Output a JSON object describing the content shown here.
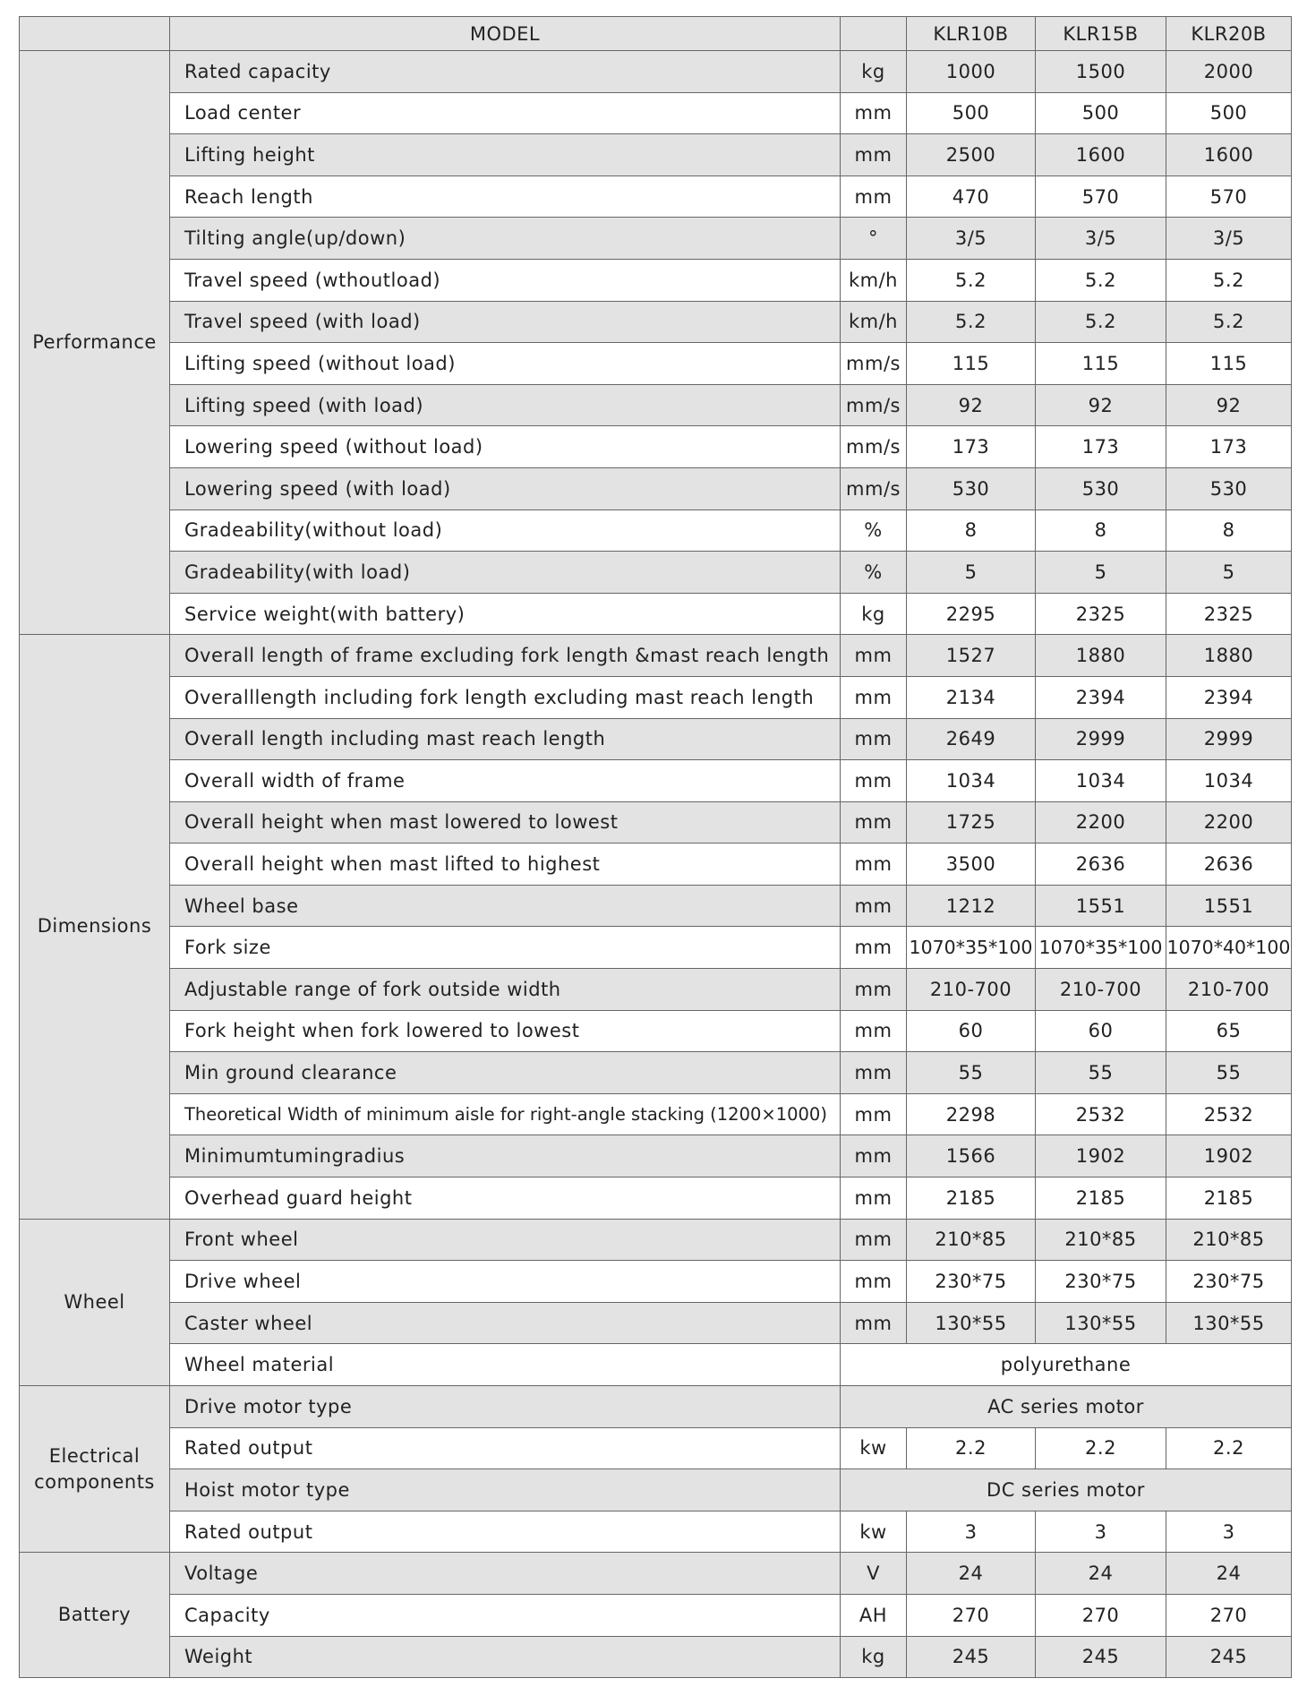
{
  "header": {
    "model_label": "MODEL",
    "models": [
      "KLR10B",
      "KLR15B",
      "KLR20B"
    ]
  },
  "groups": [
    {
      "name": "Performance",
      "rows": [
        {
          "label": "Rated capacity",
          "unit": "kg",
          "values": [
            "1000",
            "1500",
            "2000"
          ]
        },
        {
          "label": "Load center",
          "unit": "mm",
          "values": [
            "500",
            "500",
            "500"
          ]
        },
        {
          "label": "Lifting height",
          "unit": "mm",
          "values": [
            "2500",
            "1600",
            "1600"
          ]
        },
        {
          "label": "Reach length",
          "unit": "mm",
          "values": [
            "470",
            "570",
            "570"
          ]
        },
        {
          "label": "Tilting angle(up/down)",
          "unit": "°",
          "values": [
            "3/5",
            "3/5",
            "3/5"
          ]
        },
        {
          "label": "Travel speed (wthoutload)",
          "unit": "km/h",
          "values": [
            "5.2",
            "5.2",
            "5.2"
          ]
        },
        {
          "label": "Travel speed (with load)",
          "unit": "km/h",
          "values": [
            "5.2",
            "5.2",
            "5.2"
          ]
        },
        {
          "label": "Lifting speed (without load)",
          "unit": "mm/s",
          "values": [
            "115",
            "115",
            "115"
          ]
        },
        {
          "label": "Lifting speed (with load)",
          "unit": "mm/s",
          "values": [
            "92",
            "92",
            "92"
          ]
        },
        {
          "label": "Lowering speed (without load)",
          "unit": "mm/s",
          "values": [
            "173",
            "173",
            "173"
          ]
        },
        {
          "label": "Lowering speed (with load)",
          "unit": "mm/s",
          "values": [
            "530",
            "530",
            "530"
          ]
        },
        {
          "label": "Gradeability(without load)",
          "unit": "%",
          "values": [
            "8",
            "8",
            "8"
          ]
        },
        {
          "label": "Gradeability(with load)",
          "unit": "%",
          "values": [
            "5",
            "5",
            "5"
          ]
        },
        {
          "label": "Service weight(with battery)",
          "unit": "kg",
          "values": [
            "2295",
            "2325",
            "2325"
          ]
        }
      ]
    },
    {
      "name": "Dimensions",
      "rows": [
        {
          "label": "Overall length of frame excluding fork length &mast reach length",
          "unit": "mm",
          "values": [
            "1527",
            "1880",
            "1880"
          ]
        },
        {
          "label": "Overalllength including fork length excluding mast reach length",
          "unit": "mm",
          "values": [
            "2134",
            "2394",
            "2394"
          ]
        },
        {
          "label": "Overall length including mast reach length",
          "unit": "mm",
          "values": [
            "2649",
            "2999",
            "2999"
          ]
        },
        {
          "label": "Overall width of frame",
          "unit": "mm",
          "values": [
            "1034",
            "1034",
            "1034"
          ]
        },
        {
          "label": "Overall height when mast lowered to lowest",
          "unit": "mm",
          "values": [
            "1725",
            "2200",
            "2200"
          ]
        },
        {
          "label": "Overall height when mast lifted to highest",
          "unit": "mm",
          "values": [
            "3500",
            "2636",
            "2636"
          ]
        },
        {
          "label": "Wheel base",
          "unit": "mm",
          "values": [
            "1212",
            "1551",
            "1551"
          ]
        },
        {
          "label": "Fork size",
          "unit": "mm",
          "values": [
            "1070*35*100",
            "1070*35*100",
            "1070*40*100"
          ]
        },
        {
          "label": "Adjustable range of fork outside width",
          "unit": "mm",
          "values": [
            "210-700",
            "210-700",
            "210-700"
          ]
        },
        {
          "label": "Fork height when fork lowered to lowest",
          "unit": "mm",
          "values": [
            "60",
            "60",
            "65"
          ]
        },
        {
          "label": "Min ground clearance",
          "unit": "mm",
          "values": [
            "55",
            "55",
            "55"
          ]
        },
        {
          "label": "Theoretical Width of minimum aisle for right-angle stacking  (1200×1000)",
          "unit": "mm",
          "values": [
            "2298",
            "2532",
            "2532"
          ]
        },
        {
          "label": "Minimumtumingradius",
          "unit": "mm",
          "values": [
            "1566",
            "1902",
            "1902"
          ]
        },
        {
          "label": "Overhead guard height",
          "unit": "mm",
          "values": [
            "2185",
            "2185",
            "2185"
          ]
        }
      ]
    },
    {
      "name": "Wheel",
      "rows": [
        {
          "label": "Front wheel",
          "unit": "mm",
          "values": [
            "210*85",
            "210*85",
            "210*85"
          ]
        },
        {
          "label": "Drive wheel",
          "unit": "mm",
          "values": [
            "230*75",
            "230*75",
            "230*75"
          ]
        },
        {
          "label": "Caster wheel",
          "unit": "mm",
          "values": [
            "130*55",
            "130*55",
            "130*55"
          ]
        },
        {
          "label": "Wheel material",
          "value": "polyurethane"
        }
      ]
    },
    {
      "name": "Electrical components",
      "rows": [
        {
          "label": "Drive motor type",
          "value": "AC series motor"
        },
        {
          "label": "Rated output",
          "unit": "kw",
          "values": [
            "2.2",
            "2.2",
            "2.2"
          ]
        },
        {
          "label": "Hoist motor type",
          "value": "DC series motor"
        },
        {
          "label": "Rated output",
          "unit": "kw",
          "values": [
            "3",
            "3",
            "3"
          ]
        }
      ]
    },
    {
      "name": "Battery",
      "rows": [
        {
          "label": "Voltage",
          "unit": "V",
          "values": [
            "24",
            "24",
            "24"
          ]
        },
        {
          "label": "Capacity",
          "unit": "AH",
          "values": [
            "270",
            "270",
            "270"
          ]
        },
        {
          "label": "Weight",
          "unit": "kg",
          "values": [
            "245",
            "245",
            "245"
          ]
        }
      ]
    }
  ]
}
